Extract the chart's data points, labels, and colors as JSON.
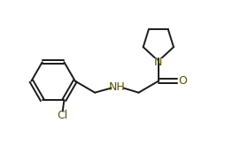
{
  "background_color": "#ffffff",
  "line_color": "#1a1a1a",
  "atom_color": "#5a5000",
  "lw": 1.4,
  "figsize": [
    2.54,
    1.73
  ],
  "dpi": 100,
  "xlim": [
    -0.3,
    6.8
  ],
  "ylim": [
    0.5,
    5.5
  ]
}
